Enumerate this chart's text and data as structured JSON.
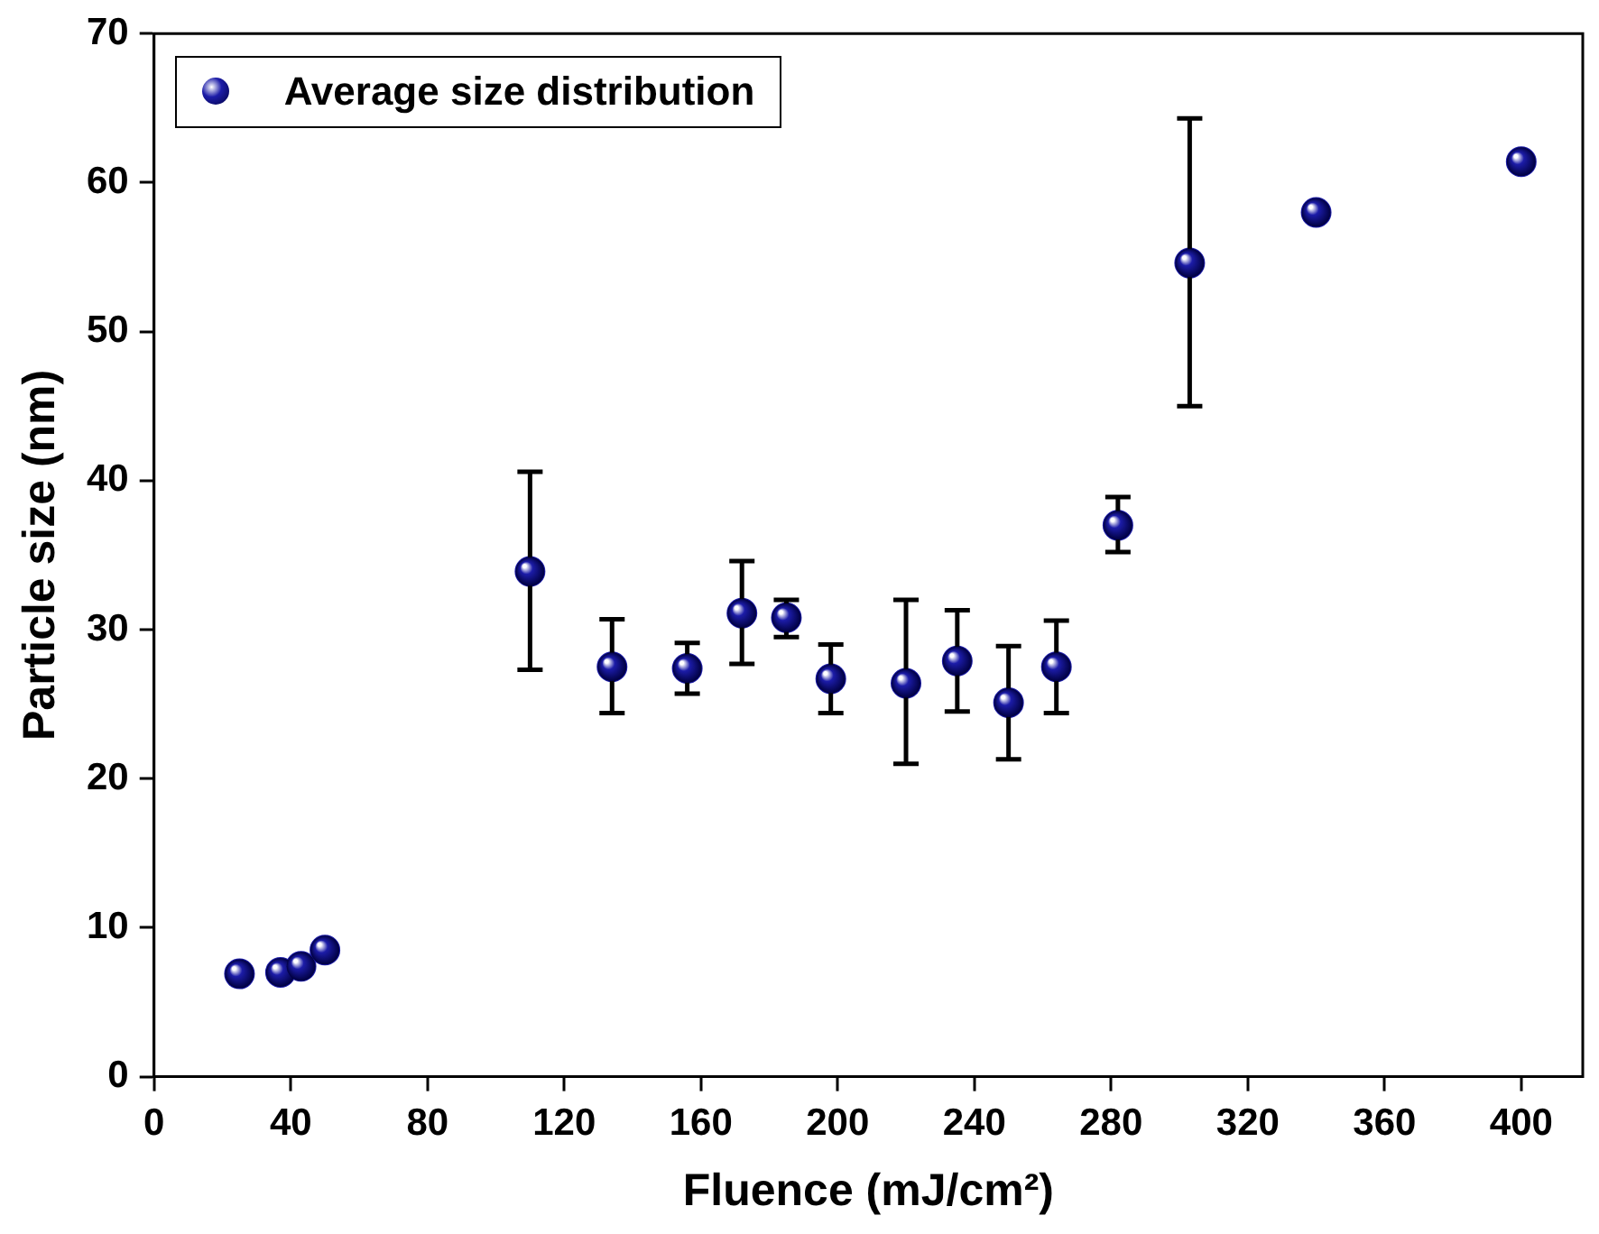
{
  "chart_data": {
    "type": "scatter",
    "xlabel": "Fluence (mJ/cm²)",
    "ylabel": "Particle size (nm)",
    "xlim": [
      0,
      418
    ],
    "ylim": [
      0,
      70
    ],
    "xticks": [
      0,
      40,
      80,
      120,
      160,
      200,
      240,
      280,
      320,
      360,
      400
    ],
    "yticks": [
      0,
      10,
      20,
      30,
      40,
      50,
      60,
      70
    ],
    "grid": false,
    "legend": "top left",
    "marker": "circle",
    "series": [
      {
        "name": "Average size distribution",
        "color": "#1c1ca8",
        "x": [
          25,
          37,
          43,
          50,
          110,
          134,
          156,
          172,
          185,
          198,
          220,
          235,
          250,
          264,
          282,
          303,
          340,
          400
        ],
        "values": [
          6.9,
          7.0,
          7.4,
          8.5,
          33.9,
          27.5,
          27.4,
          31.1,
          30.8,
          26.7,
          26.4,
          27.9,
          25.1,
          27.5,
          37.0,
          54.6,
          58.0,
          61.4
        ],
        "errors": [
          null,
          null,
          null,
          null,
          [
            27.3,
            40.6
          ],
          [
            24.4,
            30.7
          ],
          [
            25.7,
            29.1
          ],
          [
            27.7,
            34.6
          ],
          [
            29.5,
            32.0
          ],
          [
            24.4,
            29.0
          ],
          [
            21.0,
            32.0
          ],
          [
            24.5,
            31.3
          ],
          [
            21.3,
            28.9
          ],
          [
            24.4,
            30.6
          ],
          [
            35.2,
            38.9
          ],
          [
            45.0,
            64.3
          ],
          null,
          null
        ]
      }
    ]
  }
}
